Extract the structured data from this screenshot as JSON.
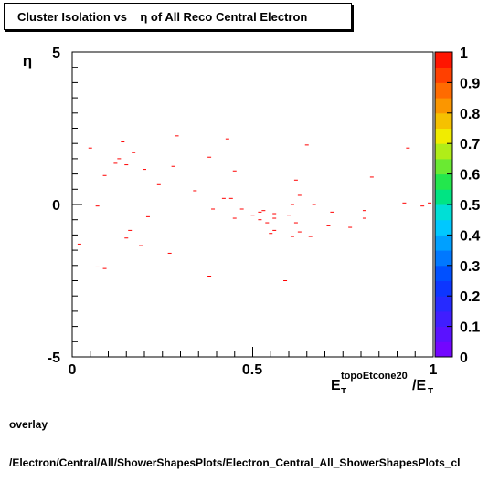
{
  "chart_data": {
    "type": "scatter",
    "title": "Cluster Isolation vs    η of All Reco Central Electron",
    "ylabel": "η",
    "xlabel": {
      "base": "E",
      "sub1": "T",
      "sup": "topoEtcone20",
      "slash": "/E",
      "sub2": "T"
    },
    "xlim": [
      0,
      1
    ],
    "ylim": [
      -5,
      5
    ],
    "x_ticks": [
      "0",
      "0.5",
      "1"
    ],
    "y_ticks": [
      "-5",
      "0",
      "5"
    ],
    "marker_color": "#ff0000",
    "points": [
      [
        0.02,
        -1.3
      ],
      [
        0.05,
        1.85
      ],
      [
        0.07,
        -0.05
      ],
      [
        0.07,
        -2.05
      ],
      [
        0.09,
        -2.1
      ],
      [
        0.09,
        0.95
      ],
      [
        0.12,
        1.35
      ],
      [
        0.13,
        1.5
      ],
      [
        0.14,
        2.05
      ],
      [
        0.15,
        1.3
      ],
      [
        0.15,
        -1.1
      ],
      [
        0.16,
        -0.85
      ],
      [
        0.17,
        1.7
      ],
      [
        0.19,
        -1.35
      ],
      [
        0.2,
        1.15
      ],
      [
        0.21,
        -0.4
      ],
      [
        0.24,
        0.65
      ],
      [
        0.27,
        -1.6
      ],
      [
        0.28,
        1.25
      ],
      [
        0.29,
        2.25
      ],
      [
        0.34,
        0.45
      ],
      [
        0.38,
        1.55
      ],
      [
        0.38,
        -2.35
      ],
      [
        0.39,
        -0.15
      ],
      [
        0.42,
        0.2
      ],
      [
        0.43,
        2.15
      ],
      [
        0.44,
        0.2
      ],
      [
        0.45,
        -0.45
      ],
      [
        0.45,
        1.1
      ],
      [
        0.47,
        -0.15
      ],
      [
        0.5,
        -0.35
      ],
      [
        0.52,
        -0.5
      ],
      [
        0.52,
        -0.25
      ],
      [
        0.53,
        -0.2
      ],
      [
        0.54,
        -0.6
      ],
      [
        0.55,
        -0.95
      ],
      [
        0.56,
        -0.45
      ],
      [
        0.56,
        -0.3
      ],
      [
        0.56,
        -0.85
      ],
      [
        0.59,
        -2.5
      ],
      [
        0.6,
        -0.35
      ],
      [
        0.61,
        0.0
      ],
      [
        0.61,
        -1.05
      ],
      [
        0.62,
        0.8
      ],
      [
        0.62,
        -0.6
      ],
      [
        0.63,
        0.3
      ],
      [
        0.63,
        -0.9
      ],
      [
        0.65,
        1.95
      ],
      [
        0.66,
        -1.05
      ],
      [
        0.67,
        0.0
      ],
      [
        0.71,
        -0.7
      ],
      [
        0.72,
        -0.25
      ],
      [
        0.77,
        -0.75
      ],
      [
        0.81,
        -0.45
      ],
      [
        0.81,
        -0.2
      ],
      [
        0.83,
        0.9
      ],
      [
        0.92,
        0.05
      ],
      [
        0.93,
        1.85
      ],
      [
        0.97,
        -0.05
      ],
      [
        0.99,
        0.05
      ]
    ],
    "colorbar": {
      "ticks": [
        "0",
        "0.1",
        "0.2",
        "0.3",
        "0.4",
        "0.5",
        "0.6",
        "0.7",
        "0.8",
        "0.9",
        "1"
      ]
    }
  },
  "footer": {
    "line1": "overlay",
    "line2": "/Electron/Central/All/ShowerShapesPlots/Electron_Central_All_ShowerShapesPlots_cl"
  }
}
